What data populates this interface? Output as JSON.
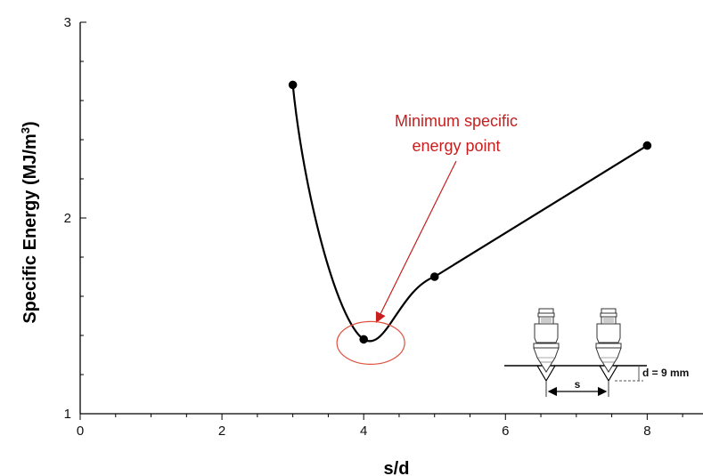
{
  "chart_data": {
    "type": "line",
    "title": "",
    "xlabel": "s/d",
    "ylabel": "Specific Energy (MJ/m",
    "ylabel_sup": "3",
    "ylabel_tail": ")",
    "xlim": [
      0,
      8.8
    ],
    "ylim": [
      1,
      3
    ],
    "x_ticks": [
      "0",
      "2",
      "4",
      "6",
      "8"
    ],
    "y_ticks": [
      "1",
      "2",
      "3"
    ],
    "grid": false,
    "series": [
      {
        "x": [
          3,
          4,
          5,
          8
        ],
        "y": [
          2.68,
          1.38,
          1.7,
          2.37
        ],
        "color": "#000000",
        "smooth": true
      }
    ],
    "annotation": {
      "lines": [
        "Minimum specific",
        "energy point"
      ],
      "color": "#c81e1e",
      "target": {
        "x": 4.1,
        "y": 1.38
      }
    },
    "inset": {
      "spacing_label": "s",
      "depth_label": "d = 9 mm"
    }
  }
}
